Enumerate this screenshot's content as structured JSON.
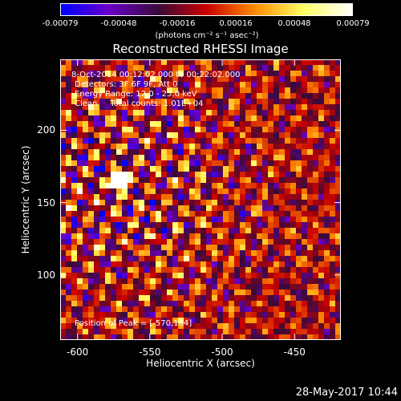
{
  "colorbar": {
    "tick_labels": [
      "-0.00079",
      "-0.00048",
      "-0.00016",
      "0.00016",
      "0.00048",
      "0.00079"
    ],
    "units": "(photons cm⁻² s⁻¹ asec⁻²)",
    "range": [
      -0.00079,
      0.00079
    ],
    "colormap": [
      "#0000ff",
      "#6a00c8",
      "#3a0a3a",
      "#c80000",
      "#ff8c00",
      "#ffff64",
      "#ffffff"
    ]
  },
  "chart_data": {
    "type": "heatmap",
    "title": "Reconstructed RHESSI Image",
    "xlabel": "Heliocentric X (arcsec)",
    "ylabel": "Heliocentric Y (arcsec)",
    "xlim": [
      -612,
      -418
    ],
    "ylim": [
      55,
      249
    ],
    "x_ticks": [
      -600,
      -550,
      -500,
      -450
    ],
    "y_ticks": [
      100,
      150,
      200
    ],
    "peak_position": [
      -570,
      164
    ],
    "value_range": [
      -0.00079,
      0.00079
    ],
    "annotations": [
      "8-Oct-2014 00:12:02.000 to 00:22:02.000",
      "Detectors: 3F 6F 9F, Att 0",
      "Energy Range: 12.0 - 25.0 keV",
      "Clean     Total counts: 1.01E+04"
    ],
    "peak_label": "Position of Peak = [-570,164]"
  },
  "footer": {
    "timestamp": "28-May-2017 10:44"
  }
}
